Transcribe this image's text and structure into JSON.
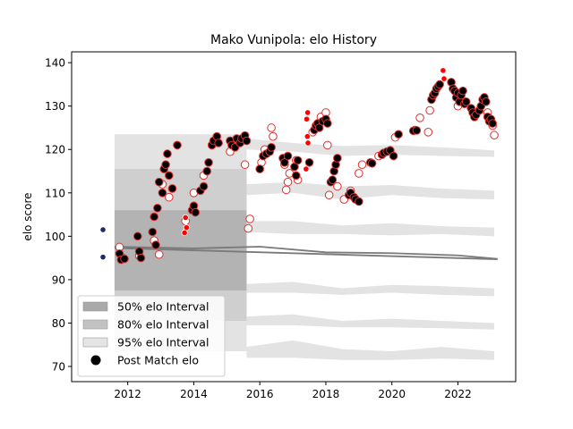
{
  "chart_data": {
    "type": "scatter",
    "title": "Mako Vunipola: elo History",
    "xlabel": "",
    "ylabel": "elo score",
    "xlim": [
      2010.3,
      2023.75
    ],
    "ylim": [
      66.5,
      142.5
    ],
    "x_ticks": [
      2012,
      2014,
      2016,
      2018,
      2020,
      2022
    ],
    "x_tick_labels": [
      "2012",
      "2014",
      "2016",
      "2018",
      "2020",
      "2022"
    ],
    "y_ticks": [
      70,
      80,
      90,
      100,
      110,
      120,
      130,
      140
    ],
    "y_tick_labels": [
      "70",
      "80",
      "90",
      "100",
      "110",
      "120",
      "130",
      "140"
    ],
    "grid": false,
    "legend_position": "lower-left",
    "legend": [
      {
        "label": "50% elo Interval",
        "kind": "patch",
        "color": "#a9a9a9"
      },
      {
        "label": "80% elo Interval",
        "kind": "patch",
        "color": "#c2c2c2"
      },
      {
        "label": "95% elo Interval",
        "kind": "patch",
        "color": "#e4e4e4"
      },
      {
        "label": "Post Match elo",
        "kind": "marker",
        "color": "#000000"
      }
    ],
    "colors": {
      "band_50": "#a9a9a9",
      "band_80": "#c8c8c8",
      "band_95": "#e3e3e3",
      "trend_line": "#7a7a7a",
      "post_match": "#000000",
      "pre_match_edge": "#e03030",
      "highlight": "#ff0000",
      "initial": "#1a2a6c"
    },
    "interval_bands": [
      {
        "name": "95% elo Interval",
        "x": [
          2011.6,
          2015.6
        ],
        "y": [
          73.5,
          123.5
        ]
      },
      {
        "name": "80% elo Interval",
        "x": [
          2011.6,
          2015.6
        ],
        "y": [
          80.5,
          115.5
        ]
      },
      {
        "name": "50% elo Interval",
        "x": [
          2011.6,
          2015.6
        ],
        "y": [
          87.5,
          106.0
        ]
      }
    ],
    "trend_series": [
      {
        "name": "mean",
        "x": [
          2011.6,
          2023.2
        ],
        "y": [
          97.3,
          94.7
        ]
      },
      {
        "name": "median",
        "x": [
          2011.6,
          2014,
          2016,
          2018,
          2020,
          2022,
          2023.2
        ],
        "y": [
          97.6,
          97.2,
          97.6,
          96.3,
          96.1,
          95.6,
          94.8
        ]
      }
    ],
    "faded_bands": [
      {
        "x": [
          2015.6,
          2017,
          2018.5,
          2020,
          2021.5,
          2023.1
        ],
        "top": [
          122.5,
          121.5,
          120.8,
          121.0,
          120.5,
          119.8
        ],
        "bottom": [
          120.0,
          119.5,
          118.5,
          118.8,
          118.5,
          118.3
        ]
      },
      {
        "x": [
          2015.6,
          2017,
          2018.5,
          2020,
          2021.5,
          2023.1
        ],
        "top": [
          112.0,
          112.5,
          111.5,
          111.8,
          111.0,
          110.5
        ],
        "bottom": [
          109.5,
          110.0,
          108.5,
          109.5,
          108.8,
          108.5
        ]
      },
      {
        "x": [
          2015.6,
          2017,
          2018.5,
          2020,
          2021.5,
          2023.1
        ],
        "top": [
          103.5,
          103.5,
          102.5,
          103.0,
          102.3,
          102.0
        ],
        "bottom": [
          101.0,
          100.5,
          100.5,
          100.2,
          100.5,
          100.0
        ]
      },
      {
        "x": [
          2015.6,
          2017,
          2018.5,
          2020,
          2021.5,
          2023.1
        ],
        "top": [
          89.0,
          89.5,
          88.0,
          88.8,
          88.5,
          88.0
        ],
        "bottom": [
          87.0,
          87.0,
          86.5,
          87.0,
          86.5,
          86.2
        ]
      },
      {
        "x": [
          2015.6,
          2017,
          2018.5,
          2020,
          2021.5,
          2023.1
        ],
        "top": [
          81.5,
          82.0,
          80.5,
          81.0,
          80.5,
          80.0
        ],
        "bottom": [
          79.5,
          79.5,
          79.0,
          79.0,
          78.8,
          78.5
        ]
      },
      {
        "x": [
          2015.6,
          2017,
          2018.5,
          2020,
          2021.5,
          2023.1
        ],
        "top": [
          74.5,
          76.0,
          74.0,
          73.5,
          74.5,
          73.5
        ],
        "bottom": [
          72.0,
          72.0,
          71.5,
          71.5,
          71.8,
          71.5
        ]
      }
    ],
    "initial_points": [
      {
        "x": 2011.25,
        "y": 101.5
      },
      {
        "x": 2011.25,
        "y": 95.2
      }
    ],
    "pre_match_points": [
      {
        "x": 2011.75,
        "y": 97.5
      },
      {
        "x": 2011.85,
        "y": 95.0
      },
      {
        "x": 2012.35,
        "y": 95.5
      },
      {
        "x": 2012.8,
        "y": 99.0
      },
      {
        "x": 2012.95,
        "y": 95.8
      },
      {
        "x": 2013.05,
        "y": 112.0
      },
      {
        "x": 2013.25,
        "y": 109.0
      },
      {
        "x": 2013.75,
        "y": 103.5
      },
      {
        "x": 2014.0,
        "y": 110.0
      },
      {
        "x": 2014.3,
        "y": 114.0
      },
      {
        "x": 2014.55,
        "y": 121.0
      },
      {
        "x": 2015.1,
        "y": 119.5
      },
      {
        "x": 2015.55,
        "y": 116.5
      },
      {
        "x": 2015.7,
        "y": 104.0
      },
      {
        "x": 2015.65,
        "y": 101.8
      },
      {
        "x": 2016.05,
        "y": 117.0
      },
      {
        "x": 2016.15,
        "y": 120.0
      },
      {
        "x": 2016.35,
        "y": 125.0
      },
      {
        "x": 2016.4,
        "y": 123.0
      },
      {
        "x": 2016.75,
        "y": 116.5
      },
      {
        "x": 2016.8,
        "y": 110.7
      },
      {
        "x": 2016.85,
        "y": 112.5
      },
      {
        "x": 2016.9,
        "y": 114.5
      },
      {
        "x": 2017.1,
        "y": 117.5
      },
      {
        "x": 2017.15,
        "y": 113.0
      },
      {
        "x": 2017.6,
        "y": 124.0
      },
      {
        "x": 2017.85,
        "y": 127.5
      },
      {
        "x": 2018.0,
        "y": 128.5
      },
      {
        "x": 2018.05,
        "y": 121.0
      },
      {
        "x": 2018.1,
        "y": 109.5
      },
      {
        "x": 2018.35,
        "y": 111.5
      },
      {
        "x": 2018.55,
        "y": 108.5
      },
      {
        "x": 2018.75,
        "y": 110.5
      },
      {
        "x": 2019.0,
        "y": 114.5
      },
      {
        "x": 2019.1,
        "y": 116.5
      },
      {
        "x": 2019.6,
        "y": 118.5
      },
      {
        "x": 2020.1,
        "y": 122.8
      },
      {
        "x": 2020.7,
        "y": 124.5
      },
      {
        "x": 2020.85,
        "y": 127.3
      },
      {
        "x": 2021.1,
        "y": 124.0
      },
      {
        "x": 2021.15,
        "y": 129.0
      },
      {
        "x": 2022.0,
        "y": 130.0
      },
      {
        "x": 2022.9,
        "y": 128.5
      },
      {
        "x": 2023.05,
        "y": 125.5
      },
      {
        "x": 2023.1,
        "y": 123.3
      }
    ],
    "highlight_points": [
      {
        "x": 2013.75,
        "y": 104.3
      },
      {
        "x": 2013.78,
        "y": 102.0
      },
      {
        "x": 2013.72,
        "y": 100.8
      },
      {
        "x": 2017.45,
        "y": 128.5
      },
      {
        "x": 2017.42,
        "y": 127.0
      },
      {
        "x": 2017.44,
        "y": 123.0
      },
      {
        "x": 2017.46,
        "y": 121.5
      },
      {
        "x": 2017.4,
        "y": 115.5
      },
      {
        "x": 2021.55,
        "y": 138.2
      },
      {
        "x": 2021.58,
        "y": 136.3
      }
    ],
    "post_match_points": [
      {
        "x": 2011.75,
        "y": 96.0
      },
      {
        "x": 2011.8,
        "y": 94.6
      },
      {
        "x": 2011.9,
        "y": 94.8
      },
      {
        "x": 2012.3,
        "y": 100.0
      },
      {
        "x": 2012.35,
        "y": 96.5
      },
      {
        "x": 2012.4,
        "y": 95.0
      },
      {
        "x": 2012.75,
        "y": 101.0
      },
      {
        "x": 2012.8,
        "y": 104.5
      },
      {
        "x": 2012.85,
        "y": 98.0
      },
      {
        "x": 2012.9,
        "y": 106.5
      },
      {
        "x": 2012.95,
        "y": 112.5
      },
      {
        "x": 2013.05,
        "y": 110.0
      },
      {
        "x": 2013.1,
        "y": 115.5
      },
      {
        "x": 2013.15,
        "y": 116.5
      },
      {
        "x": 2013.2,
        "y": 119.0
      },
      {
        "x": 2013.25,
        "y": 114.0
      },
      {
        "x": 2013.35,
        "y": 111.0
      },
      {
        "x": 2013.5,
        "y": 121.0
      },
      {
        "x": 2013.95,
        "y": 106.0
      },
      {
        "x": 2014.0,
        "y": 107.0
      },
      {
        "x": 2014.05,
        "y": 105.5
      },
      {
        "x": 2014.2,
        "y": 110.5
      },
      {
        "x": 2014.3,
        "y": 111.5
      },
      {
        "x": 2014.4,
        "y": 115.0
      },
      {
        "x": 2014.45,
        "y": 117.0
      },
      {
        "x": 2014.55,
        "y": 121.0
      },
      {
        "x": 2014.6,
        "y": 122.0
      },
      {
        "x": 2014.7,
        "y": 123.0
      },
      {
        "x": 2014.75,
        "y": 121.5
      },
      {
        "x": 2015.1,
        "y": 122.0
      },
      {
        "x": 2015.15,
        "y": 121.0
      },
      {
        "x": 2015.25,
        "y": 120.5
      },
      {
        "x": 2015.3,
        "y": 122.5
      },
      {
        "x": 2015.4,
        "y": 121.5
      },
      {
        "x": 2015.45,
        "y": 122.5
      },
      {
        "x": 2015.55,
        "y": 123.2
      },
      {
        "x": 2015.6,
        "y": 122.0
      },
      {
        "x": 2016.0,
        "y": 115.5
      },
      {
        "x": 2016.1,
        "y": 118.5
      },
      {
        "x": 2016.2,
        "y": 119.0
      },
      {
        "x": 2016.3,
        "y": 119.5
      },
      {
        "x": 2016.35,
        "y": 120.5
      },
      {
        "x": 2016.7,
        "y": 118.0
      },
      {
        "x": 2016.75,
        "y": 117.0
      },
      {
        "x": 2016.85,
        "y": 118.5
      },
      {
        "x": 2017.05,
        "y": 116.0
      },
      {
        "x": 2017.1,
        "y": 114.0
      },
      {
        "x": 2017.15,
        "y": 117.5
      },
      {
        "x": 2017.5,
        "y": 117.0
      },
      {
        "x": 2017.65,
        "y": 124.5
      },
      {
        "x": 2017.7,
        "y": 125.5
      },
      {
        "x": 2017.75,
        "y": 126.0
      },
      {
        "x": 2017.8,
        "y": 125.0
      },
      {
        "x": 2017.9,
        "y": 126.5
      },
      {
        "x": 2018.0,
        "y": 127.0
      },
      {
        "x": 2018.05,
        "y": 126.0
      },
      {
        "x": 2018.15,
        "y": 112.5
      },
      {
        "x": 2018.2,
        "y": 113.0
      },
      {
        "x": 2018.25,
        "y": 115.0
      },
      {
        "x": 2018.3,
        "y": 116.5
      },
      {
        "x": 2018.35,
        "y": 118.0
      },
      {
        "x": 2018.7,
        "y": 109.5
      },
      {
        "x": 2018.75,
        "y": 110.0
      },
      {
        "x": 2018.85,
        "y": 109.0
      },
      {
        "x": 2018.9,
        "y": 108.5
      },
      {
        "x": 2019.0,
        "y": 108.0
      },
      {
        "x": 2019.35,
        "y": 117.0
      },
      {
        "x": 2019.4,
        "y": 116.8
      },
      {
        "x": 2019.7,
        "y": 118.8
      },
      {
        "x": 2019.75,
        "y": 119.2
      },
      {
        "x": 2019.85,
        "y": 119.5
      },
      {
        "x": 2019.95,
        "y": 119.8
      },
      {
        "x": 2020.05,
        "y": 118.5
      },
      {
        "x": 2020.2,
        "y": 123.5
      },
      {
        "x": 2020.65,
        "y": 124.3
      },
      {
        "x": 2020.75,
        "y": 124.4
      },
      {
        "x": 2021.2,
        "y": 131.5
      },
      {
        "x": 2021.25,
        "y": 132.5
      },
      {
        "x": 2021.3,
        "y": 133.0
      },
      {
        "x": 2021.35,
        "y": 134.0
      },
      {
        "x": 2021.4,
        "y": 134.5
      },
      {
        "x": 2021.45,
        "y": 135.0
      },
      {
        "x": 2021.8,
        "y": 135.5
      },
      {
        "x": 2021.85,
        "y": 134.0
      },
      {
        "x": 2021.9,
        "y": 133.5
      },
      {
        "x": 2021.95,
        "y": 132.0
      },
      {
        "x": 2022.0,
        "y": 133.0
      },
      {
        "x": 2022.05,
        "y": 131.0
      },
      {
        "x": 2022.1,
        "y": 132.5
      },
      {
        "x": 2022.15,
        "y": 133.5
      },
      {
        "x": 2022.2,
        "y": 130.5
      },
      {
        "x": 2022.25,
        "y": 131.0
      },
      {
        "x": 2022.4,
        "y": 129.5
      },
      {
        "x": 2022.45,
        "y": 128.5
      },
      {
        "x": 2022.5,
        "y": 127.5
      },
      {
        "x": 2022.55,
        "y": 128.0
      },
      {
        "x": 2022.65,
        "y": 129.0
      },
      {
        "x": 2022.7,
        "y": 130.0
      },
      {
        "x": 2022.75,
        "y": 131.5
      },
      {
        "x": 2022.8,
        "y": 132.0
      },
      {
        "x": 2022.85,
        "y": 131.0
      },
      {
        "x": 2022.9,
        "y": 127.5
      },
      {
        "x": 2022.95,
        "y": 126.5
      },
      {
        "x": 2023.0,
        "y": 127.0
      },
      {
        "x": 2023.05,
        "y": 126.0
      }
    ]
  }
}
